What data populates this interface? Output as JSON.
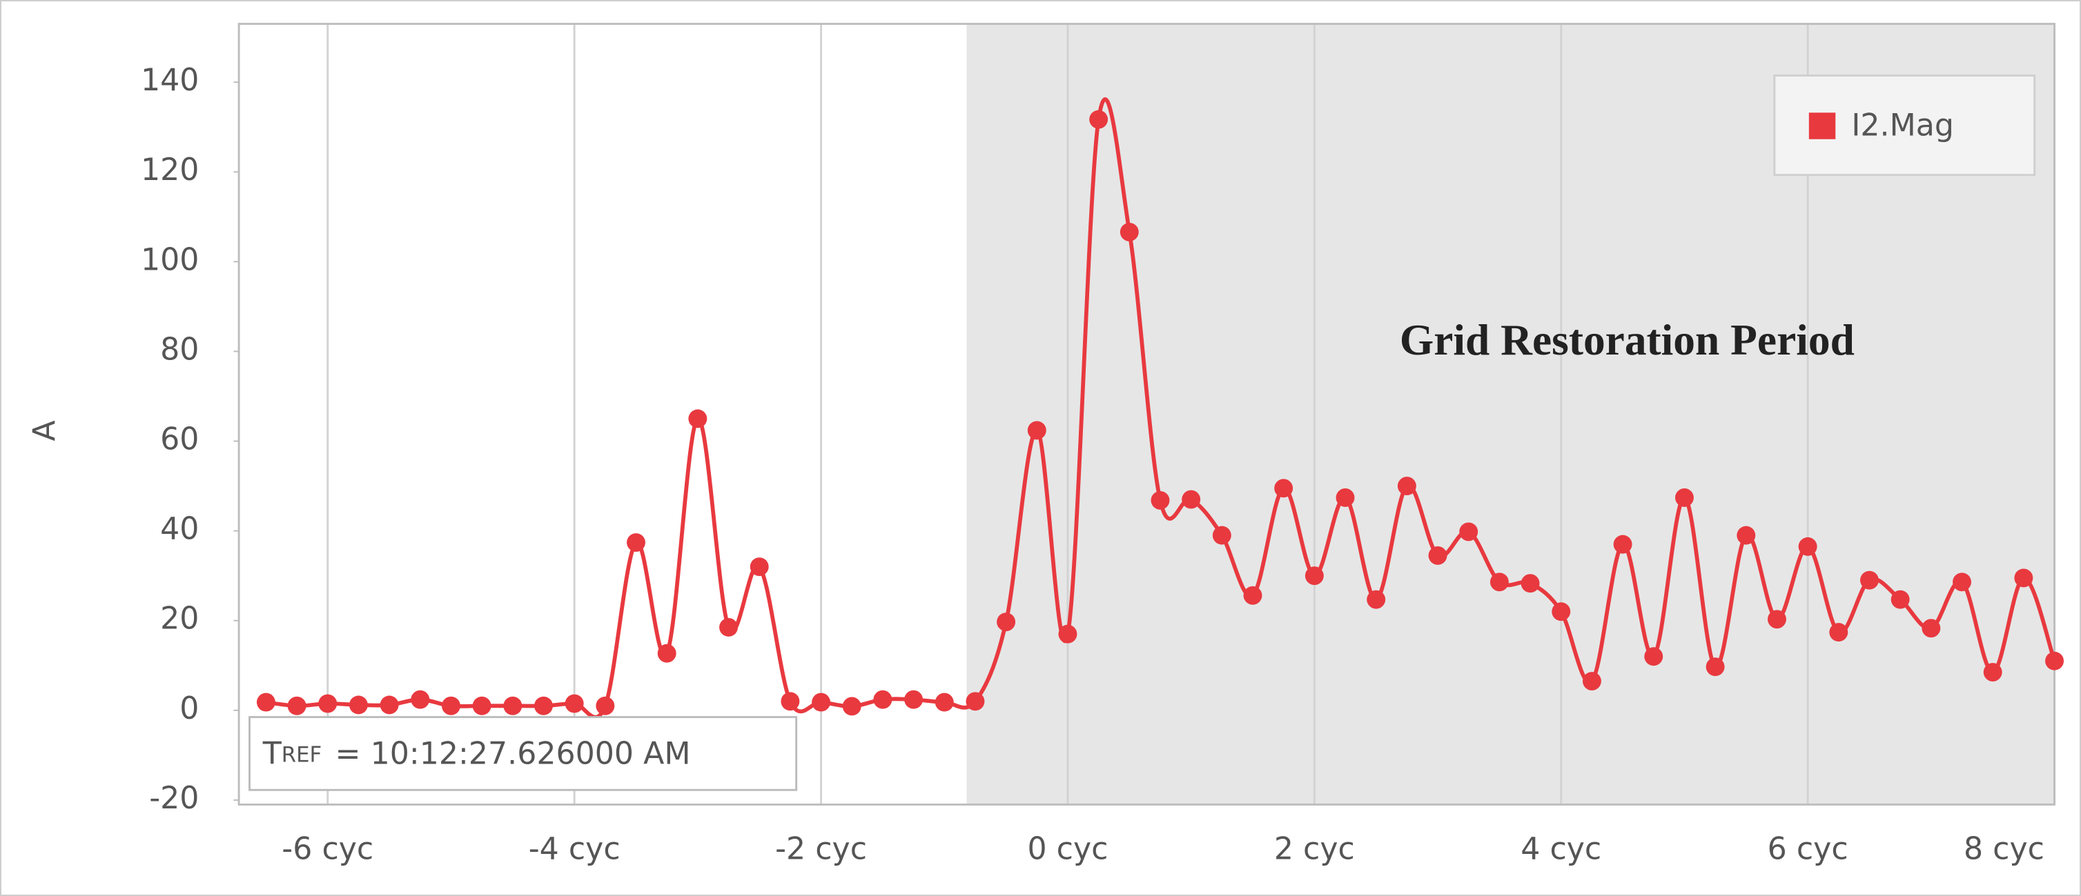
{
  "chart_data": {
    "type": "line",
    "y_label": "A",
    "annotation": "Grid Restoration Period",
    "shaded_xrange": [
      -0.82,
      8
    ],
    "reference_time": {
      "symbol": "T",
      "subscript": "REF",
      "text": "= 10:12:27.626000 AM"
    },
    "x": [
      -6.5,
      -6.25,
      -6,
      -5.75,
      -5.5,
      -5.25,
      -5,
      -4.75,
      -4.5,
      -4.25,
      -4,
      -3.75,
      -3.5,
      -3.25,
      -3,
      -2.75,
      -2.5,
      -2.25,
      -2,
      -1.75,
      -1.5,
      -1.25,
      -1,
      -0.75,
      -0.5,
      -0.25,
      0,
      0.25,
      0.5,
      0.75,
      1,
      1.25,
      1.5,
      1.75,
      2,
      2.25,
      2.5,
      2.75,
      3,
      3.25,
      3.5,
      3.75,
      4,
      4.25,
      4.5,
      4.75,
      5,
      5.25,
      5.5,
      5.75,
      6,
      6.25,
      6.5,
      6.75,
      7,
      7.25,
      7.5,
      7.75,
      8
    ],
    "series": [
      {
        "name": "I2.Mag",
        "color": "#e8393f",
        "values": [
          1.8,
          1,
          1.5,
          1.2,
          1.2,
          2.4,
          1,
          1,
          1,
          1,
          1.5,
          1,
          37.4,
          12.7,
          65,
          18.5,
          32,
          2,
          1.8,
          0.9,
          2.4,
          2.4,
          1.8,
          2,
          19.7,
          62.4,
          17,
          131.7,
          106.6,
          46.8,
          47,
          39,
          25.6,
          49.5,
          30,
          47.4,
          24.7,
          50,
          34.5,
          39.8,
          28.6,
          28.3,
          22,
          6.5,
          37,
          12,
          47.4,
          9.7,
          39,
          20.3,
          36.5,
          17.4,
          29,
          24.7,
          18.3,
          28.6,
          8.5,
          29.5,
          11
        ]
      }
    ],
    "xlim": [
      -6.72,
      8
    ],
    "ylim": [
      -21,
      153
    ],
    "xticks": [
      {
        "value": -6,
        "label": "-6 cyc"
      },
      {
        "value": -4,
        "label": "-4 cyc"
      },
      {
        "value": -2,
        "label": "-2 cyc"
      },
      {
        "value": 0,
        "label": "0 cyc"
      },
      {
        "value": 2,
        "label": "2 cyc"
      },
      {
        "value": 4,
        "label": "4 cyc"
      },
      {
        "value": 6,
        "label": "6 cyc"
      },
      {
        "value": 8,
        "label": "8 cyc"
      }
    ],
    "yticks": [
      -20,
      0,
      20,
      40,
      60,
      80,
      100,
      120,
      140
    ],
    "grid": "x",
    "legend": "top-right"
  }
}
